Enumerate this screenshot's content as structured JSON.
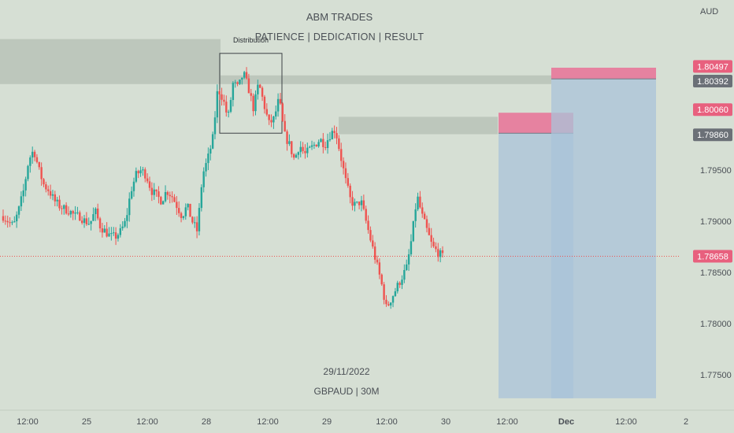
{
  "header": {
    "brand": "ABM TRADES",
    "tagline": "PATIENCE   |   DEDICATION |   RESULT",
    "currency": "AUD"
  },
  "footer": {
    "date": "29/11/2022",
    "symbol": "GBPAUD | 30M"
  },
  "annotation": {
    "box_label": "Distribution"
  },
  "price_tags": [
    {
      "value": "1.80497",
      "color": "#e8607e"
    },
    {
      "value": "1.80392",
      "color": "#6b7077"
    },
    {
      "value": "1.80060",
      "color": "#e8607e"
    },
    {
      "value": "1.79860",
      "color": "#6b7077"
    },
    {
      "value": "1.78658",
      "color": "#e8607e"
    }
  ],
  "colors": {
    "up": "#26a69a",
    "down": "#ef5350",
    "zone": "#bcc5bb",
    "target": "#a9c3d9",
    "stop": "#e8789a",
    "axis_text": "#4a4f55"
  },
  "chart_data": {
    "type": "candlestick",
    "symbol": "GBPAUD",
    "timeframe": "30M",
    "y_ticks": [
      1.775,
      1.78,
      1.785,
      1.79,
      1.795
    ],
    "y_tick_labels": [
      "1.77500",
      "1.78000",
      "1.78500",
      "1.79000",
      "1.79500"
    ],
    "ylim": [
      1.7727,
      1.8104
    ],
    "x_ticks": [
      "12:00",
      "25",
      "12:00",
      "28",
      "12:00",
      "29",
      "12:00",
      "30",
      "12:00",
      "Dec",
      "12:00",
      "2"
    ],
    "last_price": 1.78658,
    "path": [
      1.7905,
      1.79,
      1.7895,
      1.791,
      1.793,
      1.796,
      1.797,
      1.795,
      1.7935,
      1.793,
      1.792,
      1.7915,
      1.7912,
      1.791,
      1.7905,
      1.7905,
      1.79,
      1.7898,
      1.791,
      1.7895,
      1.789,
      1.7885,
      1.7885,
      1.789,
      1.79,
      1.793,
      1.7945,
      1.795,
      1.7945,
      1.793,
      1.7925,
      1.792,
      1.793,
      1.7925,
      1.7915,
      1.7905,
      1.7915,
      1.79,
      1.789,
      1.7945,
      1.796,
      1.798,
      1.803,
      1.802,
      1.8,
      1.8035,
      1.803,
      1.8045,
      1.803,
      1.801,
      1.8035,
      1.8015,
      1.7995,
      1.8,
      1.802,
      1.7985,
      1.7975,
      1.796,
      1.7975,
      1.7965,
      1.797,
      1.7975,
      1.798,
      1.7975,
      1.7985,
      1.799,
      1.7965,
      1.794,
      1.792,
      1.7915,
      1.792,
      1.79,
      1.788,
      1.786,
      1.784,
      1.7815,
      1.7825,
      1.7835,
      1.7845,
      1.7855,
      1.7885,
      1.7925,
      1.7905,
      1.789,
      1.7875,
      1.787,
      1.7865
    ],
    "zones": [
      {
        "name": "supply-zone-upper",
        "from_x": 0,
        "to_x": 280,
        "top": 1.8078,
        "bottom": 1.8034
      },
      {
        "name": "supply-zone-upper-extension",
        "from_x": 280,
        "to_x": 700,
        "top": 1.80425,
        "bottom": 1.8034
      },
      {
        "name": "supply-zone-lower",
        "from_x": 430,
        "to_x": 632,
        "top": 1.8002,
        "bottom": 1.7985
      }
    ],
    "positions": [
      {
        "name": "short-position-1",
        "entry": 1.7986,
        "stop": 1.8006,
        "target": 1.7727
      },
      {
        "name": "short-position-2",
        "entry": 1.8039,
        "stop": 1.805,
        "target": 1.7727
      }
    ],
    "distribution_box": {
      "high": 1.8064,
      "low": 1.7986
    }
  }
}
